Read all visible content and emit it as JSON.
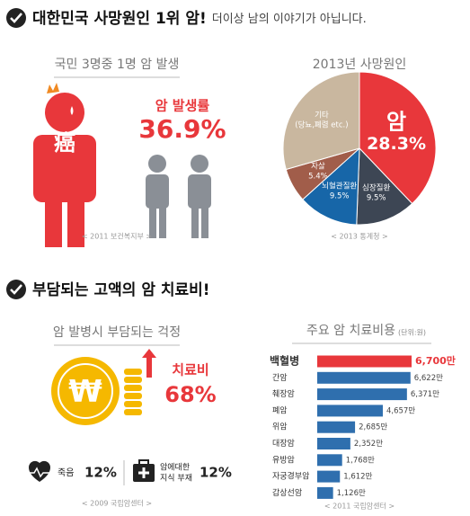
{
  "sections": [
    {
      "title": "대한민국 사망원인 1위 암!",
      "subtitle": "더이상 남의 이야기가 아닙니다."
    },
    {
      "title": "부담되는 고액의 암 치료비!"
    }
  ],
  "incidence": {
    "title": "국민 3명중 1명 암 발생",
    "icon_text": "癌",
    "label": "암 발생률",
    "value": "36.9%",
    "source": "< 2011 보건복지부 >"
  },
  "worry": {
    "title": "암 발병시 부담되는 걱정",
    "icon_text": "₩",
    "label": "치료비",
    "value": "68%",
    "items": [
      {
        "label": "죽음",
        "value": "12%"
      },
      {
        "label": "암에대한",
        "label2": "지식 부재",
        "value": "12%"
      }
    ],
    "source": "< 2009 국립암센터 >"
  },
  "chart_data": [
    {
      "type": "pie",
      "title": "2013년 사망원인",
      "categories": [
        "암",
        "심장질환",
        "뇌혈관질환",
        "자살",
        "기타"
      ],
      "category_notes": [
        null,
        null,
        null,
        null,
        "(당뇨,폐렴 etc.)"
      ],
      "values": [
        28.3,
        9.5,
        9.5,
        5.4,
        22
      ],
      "value_labels": [
        "28.3%",
        "9.5%",
        "9.5%",
        "5.4%",
        null
      ],
      "colors": [
        "#e8373b",
        "#3d4654",
        "#1766a8",
        "#a15d4a",
        "#c9b79f"
      ],
      "source": "< 2013 통계청 >"
    },
    {
      "type": "bar",
      "orientation": "horizontal",
      "title": "주요 암 치료비용",
      "unit": "(단위:원)",
      "categories": [
        "백혈병",
        "간암",
        "췌장암",
        "폐암",
        "위암",
        "대장암",
        "유방암",
        "자궁경부암",
        "갑상선암"
      ],
      "values": [
        6700,
        6622,
        6371,
        4657,
        2685,
        2352,
        1768,
        1612,
        1126
      ],
      "value_labels": [
        "6,700만",
        "6,622만",
        "6,371만",
        "4,657만",
        "2,685만",
        "2,352만",
        "1,768만",
        "1,612만",
        "1,126만"
      ],
      "colors": [
        "#e8373b",
        "#2f6fae",
        "#2f6fae",
        "#2f6fae",
        "#2f6fae",
        "#2f6fae",
        "#2f6fae",
        "#2f6fae",
        "#2f6fae"
      ],
      "xlim": [
        0,
        6700
      ],
      "source": "< 2011 국립암센터 >"
    }
  ]
}
